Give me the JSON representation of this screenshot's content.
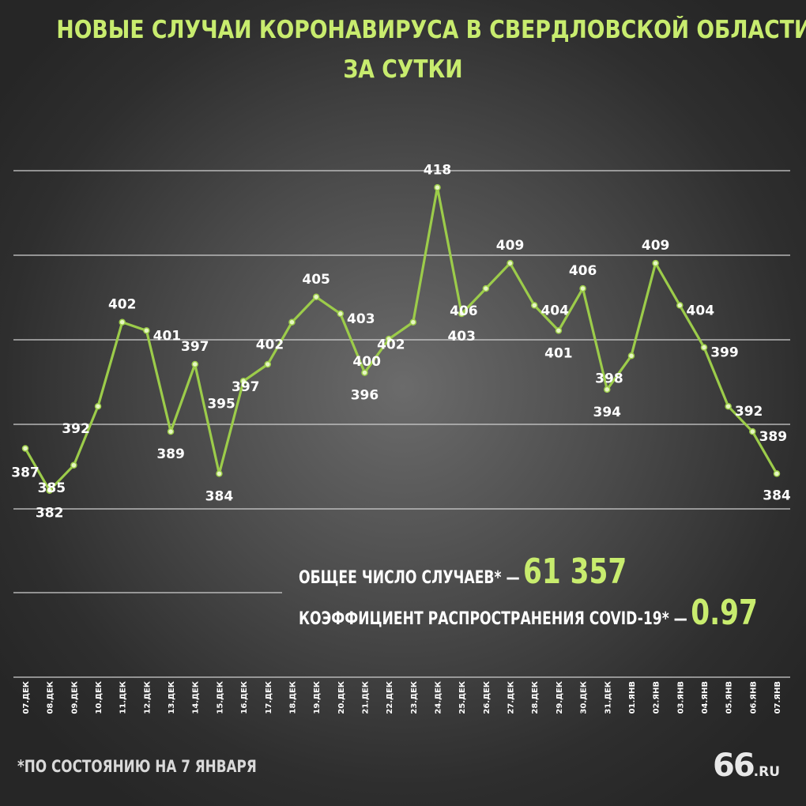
{
  "title_line1": "НОВЫЕ СЛУЧАИ КОРОНАВИРУСА В СВЕРДЛОВСКОЙ ОБЛАСТИ",
  "title_line2": "ЗА СУТКИ",
  "colors": {
    "accent": "#c8ec6e",
    "line": "#9ccc4a",
    "text": "#ffffff"
  },
  "chart_data": {
    "type": "line",
    "title": "НОВЫЕ СЛУЧАИ КОРОНАВИРУСА В СВЕРДЛОВСКОЙ ОБЛАСТИ ЗА СУТКИ",
    "categories": [
      "07.ДЕК",
      "08.ДЕК",
      "09.ДЕК",
      "10.ДЕК",
      "11.ДЕК",
      "12.ДЕК",
      "13.ДЕК",
      "14.ДЕК",
      "15.ДЕК",
      "16.ДЕК",
      "17.ДЕК",
      "18.ДЕК",
      "19.ДЕК",
      "20.ДЕК",
      "21.ДЕК",
      "22.ДЕК",
      "23.ДЕК",
      "24.ДЕК",
      "25.ДЕК",
      "26.ДЕК",
      "27.ДЕК",
      "28.ДЕК",
      "29.ДЕК",
      "30.ДЕК",
      "31.ДЕК",
      "01.ЯНВ",
      "02.ЯНВ",
      "03.ЯНВ",
      "04.ЯНВ",
      "05.ЯНВ",
      "06.ЯНВ",
      "07.ЯНВ"
    ],
    "values": [
      387,
      382,
      385,
      392,
      402,
      401,
      389,
      397,
      384,
      395,
      397,
      402,
      405,
      403,
      396,
      400,
      402,
      418,
      403,
      406,
      409,
      404,
      401,
      406,
      394,
      398,
      409,
      404,
      399,
      392,
      389,
      384
    ],
    "xlabel": "",
    "ylabel": "",
    "ylim": [
      380,
      420
    ],
    "grid": true,
    "legend": "none"
  },
  "stats": {
    "total_label": "ОБЩЕЕ ЧИСЛО СЛУЧАЕВ* —",
    "total_value": "61 357",
    "r_label": "КОЭФФИЦИЕНТ РАСПРОСТРАНЕНИЯ COVID-19* —",
    "r_value": "0.97"
  },
  "footnote": "*ПО СОСТОЯНИЮ НА 7 ЯНВАРЯ",
  "logo": {
    "big": "66",
    "small": ".RU"
  }
}
